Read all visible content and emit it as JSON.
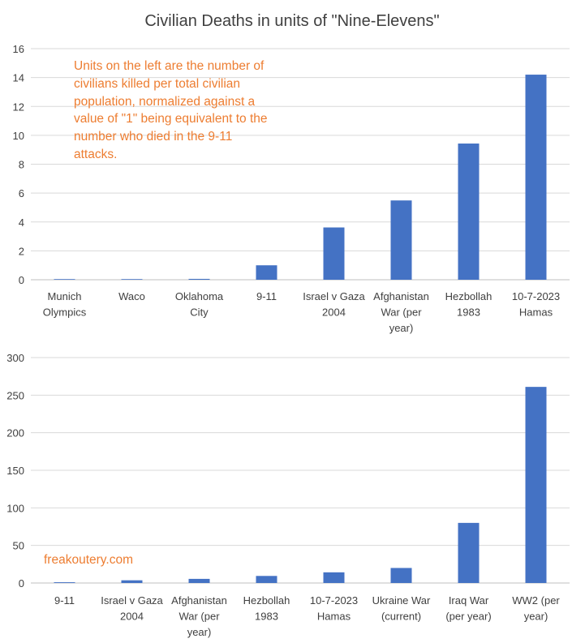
{
  "colors": {
    "bar": "#4472c4",
    "grid": "#d9d9d9",
    "axis": "#bfbfbf",
    "text": "#404040",
    "accent": "#ed7d31"
  },
  "title": "Civilian Deaths in units of \"Nine-Elevens\"",
  "annotation": "Units on the left are the number of civilians killed per total civilian population, normalized against a value of \"1\" being equivalent to the number who died in the 9-11 attacks.",
  "credit": "freakoutery.com",
  "chart_data": [
    {
      "type": "bar",
      "title": "Civilian Deaths in units of \"Nine-Elevens\"",
      "categories": [
        [
          "Munich",
          "Olympics"
        ],
        [
          "Waco"
        ],
        [
          "Oklahoma",
          "City"
        ],
        [
          "9-11"
        ],
        [
          "Israel v Gaza",
          "2004"
        ],
        [
          "Afghanistan",
          "War (per",
          "year)"
        ],
        [
          "Hezbollah",
          "1983"
        ],
        [
          "10-7-2023",
          "Hamas"
        ]
      ],
      "values": [
        0.01,
        0.02,
        0.06,
        1.0,
        3.62,
        5.49,
        9.43,
        14.2
      ],
      "ylim": [
        0,
        16
      ],
      "yticks": [
        0,
        2,
        4,
        6,
        8,
        10,
        12,
        14,
        16
      ],
      "xlabel": "",
      "ylabel": "",
      "grid": true
    },
    {
      "type": "bar",
      "title": "",
      "categories": [
        [
          "9-11"
        ],
        [
          "Israel v Gaza",
          "2004"
        ],
        [
          "Afghanistan",
          "War (per",
          "year)"
        ],
        [
          "Hezbollah",
          "1983"
        ],
        [
          "10-7-2023",
          "Hamas"
        ],
        [
          "Ukraine War",
          "(current)"
        ],
        [
          "Iraq War",
          "(per year)"
        ],
        [
          "WW2 (per",
          "year)"
        ]
      ],
      "values": [
        1.0,
        3.6,
        5.5,
        9.4,
        14.2,
        20,
        80,
        261
      ],
      "ylim": [
        0,
        300
      ],
      "yticks": [
        0,
        50,
        100,
        150,
        200,
        250,
        300
      ],
      "xlabel": "",
      "ylabel": "",
      "grid": true
    }
  ]
}
